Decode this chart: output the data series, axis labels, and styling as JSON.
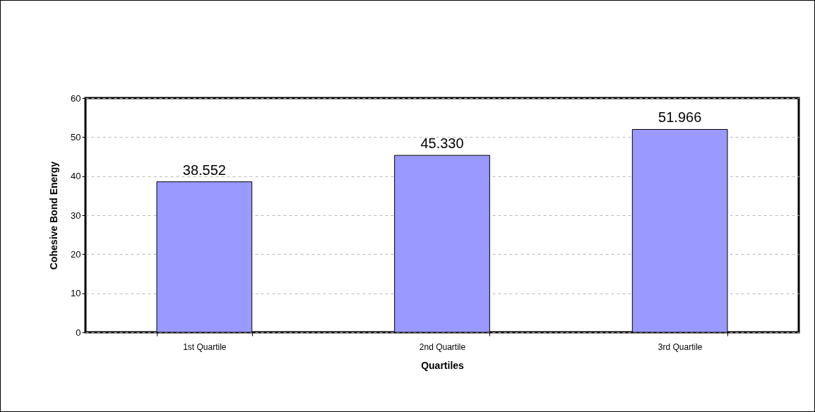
{
  "chart_data": {
    "type": "bar",
    "xlabel": "Quartiles",
    "ylabel": "Cohesive Bond Energy",
    "categories": [
      "1st Quartile",
      "2nd Quartile",
      "3rd Quartile"
    ],
    "values": [
      38.552,
      45.33,
      51.966
    ],
    "value_labels": [
      "38.552",
      "45.330",
      "51.966"
    ],
    "color": "#9999ff",
    "ylim": [
      0,
      60
    ],
    "yticks": [
      0,
      10,
      20,
      30,
      40,
      50,
      60
    ],
    "grid": "y"
  }
}
